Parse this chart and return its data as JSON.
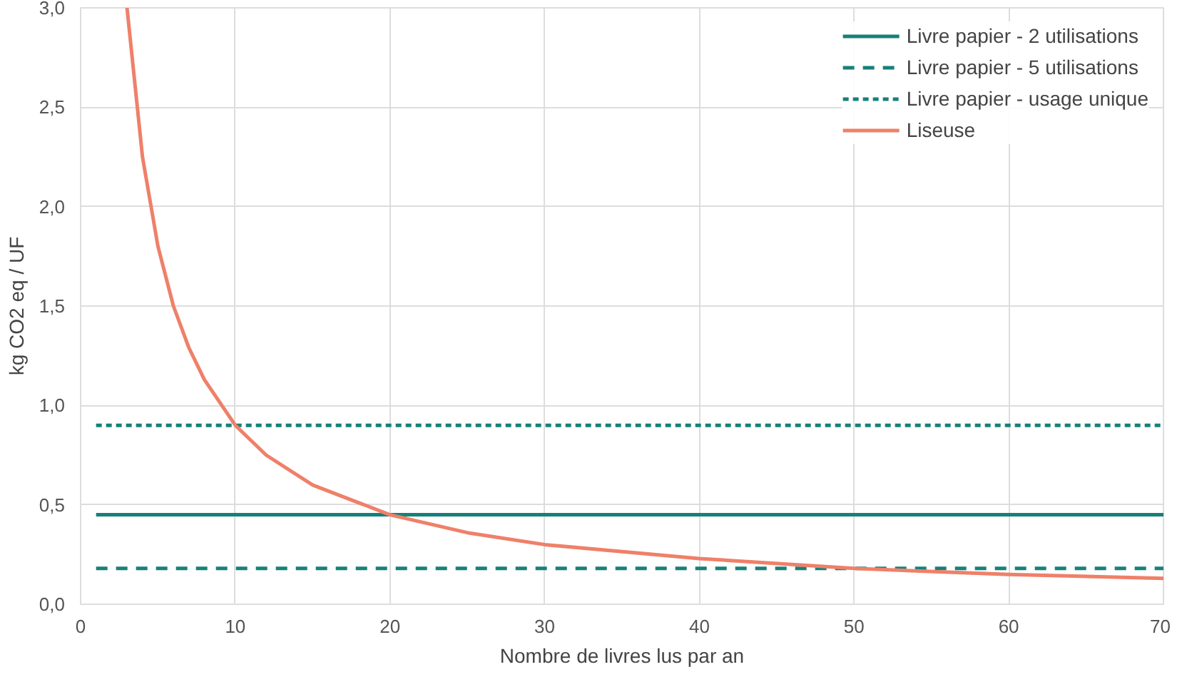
{
  "chart_data": {
    "type": "line",
    "xlabel": "Nombre de livres lus par an",
    "ylabel": "kg CO2 eq / UF",
    "xlim": [
      0,
      70
    ],
    "xticks": [
      0,
      10,
      20,
      30,
      40,
      50,
      60,
      70
    ],
    "ylim": [
      0,
      3
    ],
    "yticks": [
      {
        "value": 0,
        "label": "0,0"
      },
      {
        "value": 0.5,
        "label": "0,5"
      },
      {
        "value": 1,
        "label": "1,0"
      },
      {
        "value": 1.5,
        "label": "1,5"
      },
      {
        "value": 2,
        "label": "2,0"
      },
      {
        "value": 2.5,
        "label": "2,5"
      },
      {
        "value": 3,
        "label": "3,0"
      }
    ],
    "grid": true,
    "legend": "top right",
    "series": [
      {
        "name": "Livre papier - 2 utilisations",
        "color": "#17807a",
        "line_style": "solid",
        "x": [
          1,
          70
        ],
        "values": [
          0.45,
          0.45
        ]
      },
      {
        "name": "Livre papier - 5 utilisations",
        "color": "#17807a",
        "line_style": "dashed",
        "x": [
          1,
          70
        ],
        "values": [
          0.18,
          0.18
        ]
      },
      {
        "name": "Livre papier - usage unique",
        "color": "#17807a",
        "line_style": "dotted",
        "x": [
          1,
          70
        ],
        "values": [
          0.9,
          0.9
        ]
      },
      {
        "name": "Liseuse",
        "color": "#ef8069",
        "line_style": "solid",
        "x": [
          3,
          4,
          5,
          6,
          7,
          8,
          10,
          12,
          15,
          20,
          25,
          30,
          40,
          50,
          60,
          70
        ],
        "values": [
          3.0,
          2.25,
          1.8,
          1.5,
          1.29,
          1.13,
          0.9,
          0.75,
          0.6,
          0.45,
          0.36,
          0.3,
          0.23,
          0.18,
          0.15,
          0.13
        ]
      }
    ]
  }
}
